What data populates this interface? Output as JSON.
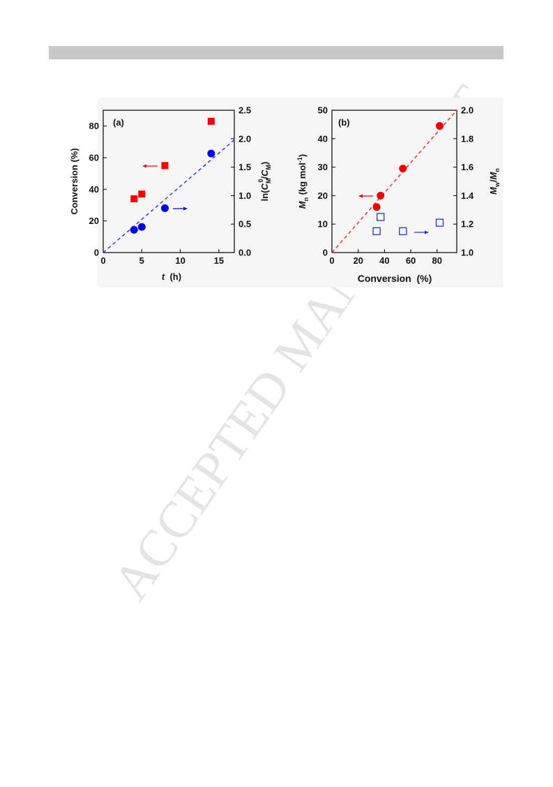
{
  "watermark": "ACCEPTED MANUSCRIPT",
  "chart_data": [
    {
      "type": "scatter",
      "panel_label": "(a)",
      "x_label": [
        "t",
        "  (h)"
      ],
      "y_label": "Conversion (%)",
      "y2_label": [
        "ln(",
        "C",
        "M",
        "0",
        "/",
        "C",
        "M",
        ")"
      ],
      "xlim": [
        0,
        17
      ],
      "xticks": [
        0,
        5,
        10,
        15
      ],
      "ylim": [
        0,
        90
      ],
      "yticks": [
        0,
        20,
        40,
        60,
        80
      ],
      "y2lim": [
        0,
        2.5
      ],
      "y2ticks": [
        {
          "value": 0,
          "label": "0.0"
        },
        0.5,
        {
          "value": 1,
          "label": "1.0"
        },
        1.5,
        {
          "value": 2,
          "label": "2.0"
        },
        2.5
      ],
      "series": [
        {
          "marker": "square",
          "filled": true,
          "color": "#ff0000",
          "x": [
            4,
            5,
            8,
            14
          ],
          "values": [
            34,
            37,
            55,
            83
          ]
        },
        {
          "marker": "circle",
          "filled": true,
          "color": "#0000ee",
          "axis": "y2",
          "x": [
            4,
            5,
            8,
            14
          ],
          "values": [
            0.4,
            0.45,
            0.78,
            1.74
          ]
        }
      ],
      "lines": [
        {
          "color": "#2233dd",
          "axis": "y2",
          "x": [
            0,
            17
          ],
          "values": [
            0,
            1.98
          ]
        }
      ]
    },
    {
      "type": "scatter",
      "panel_label": "(b)",
      "x_label": [
        "Conversion  (%)"
      ],
      "y_label": [
        "M",
        "n",
        " (kg mol",
        "-1",
        ")"
      ],
      "y2_label": [
        "M",
        "w",
        "/",
        "M",
        "n"
      ],
      "xlim": [
        0,
        95
      ],
      "xticks": [
        0,
        20,
        40,
        60,
        80
      ],
      "ylim": [
        0,
        50
      ],
      "yticks": [
        0,
        10,
        20,
        30,
        40,
        50
      ],
      "y2lim": [
        1,
        2
      ],
      "y2ticks": [
        {
          "value": 1,
          "label": "1.0"
        },
        1.2,
        1.4,
        1.6,
        1.8,
        {
          "value": 2,
          "label": "2.0"
        }
      ],
      "series": [
        {
          "marker": "circle",
          "filled": true,
          "color": "#ee0000",
          "x": [
            34,
            37,
            54,
            82
          ],
          "values": [
            16,
            20,
            29.5,
            44.5
          ]
        },
        {
          "marker": "square",
          "filled": false,
          "color": "#2233cc",
          "axis": "y2",
          "x": [
            34,
            37,
            54,
            82
          ],
          "values": [
            1.15,
            1.25,
            1.15,
            1.21
          ]
        }
      ],
      "lines": [
        {
          "color": "#ee2222",
          "axis": "y",
          "x": [
            0,
            95
          ],
          "values": [
            0,
            50
          ]
        }
      ]
    }
  ]
}
